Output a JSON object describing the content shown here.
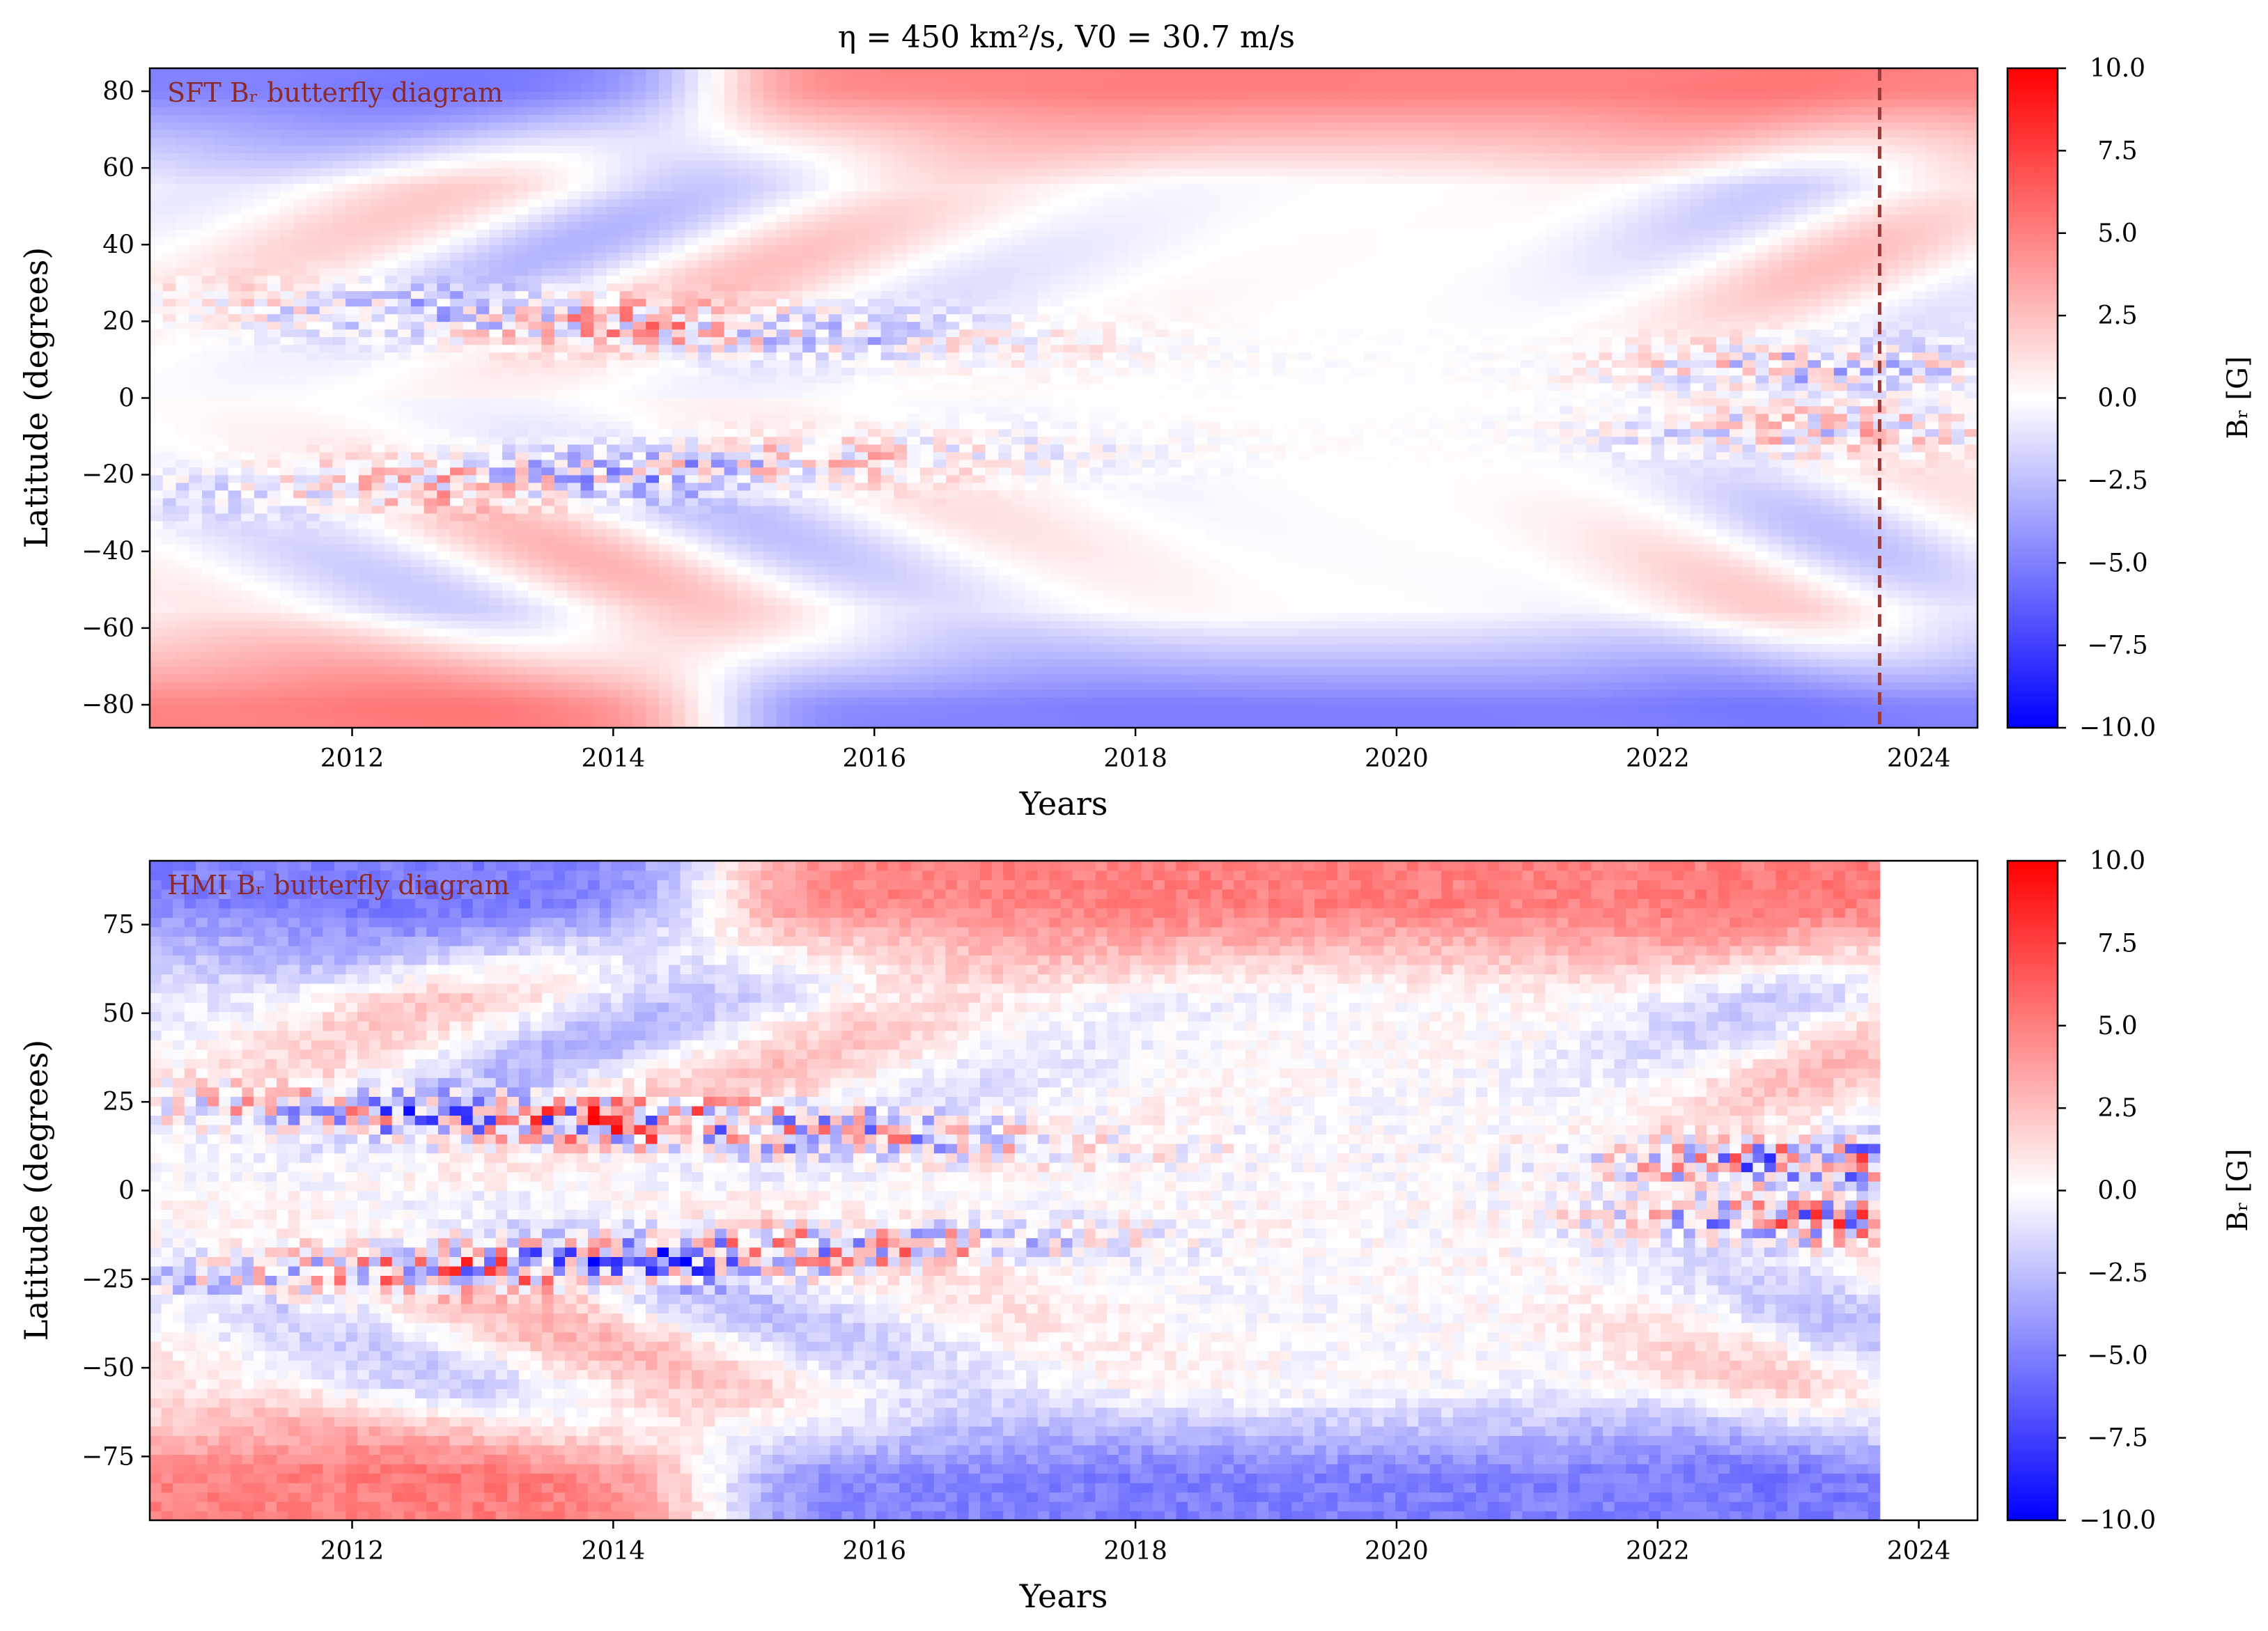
{
  "figure": {
    "title": "η = 450 km²/s, V0 = 30.7 m/s"
  },
  "colors": {
    "positive": "#ff0000",
    "negative": "#0000ff",
    "zero": "#ffffff",
    "annotation": "#8b2a2a",
    "vline": "#9b3a3a"
  },
  "chart_data": [
    {
      "type": "heatmap",
      "id": "sft",
      "annotation": "SFT Bᵣ butterfly diagram",
      "xlabel": "Years",
      "ylabel": "Latitude (degrees)",
      "xlim": [
        2010.45,
        2024.45
      ],
      "ylim": [
        -86,
        86
      ],
      "xticks": [
        2012,
        2014,
        2016,
        2018,
        2020,
        2022,
        2024
      ],
      "yticks": [
        -80,
        -60,
        -40,
        -20,
        0,
        20,
        40,
        60,
        80
      ],
      "vline_year": 2023.7,
      "data_end_year": 2024.45,
      "colorbar": {
        "label": "Bᵣ [G]",
        "range": [
          -10,
          10
        ],
        "ticks": [
          "10.0",
          "7.5",
          "5.0",
          "2.5",
          "0.0",
          "−2.5",
          "−5.0",
          "−7.5",
          "−10.0"
        ]
      }
    },
    {
      "type": "heatmap",
      "id": "hmi",
      "annotation": "HMI Bᵣ butterfly diagram",
      "xlabel": "Years",
      "ylabel": "Latitude (degrees)",
      "xlim": [
        2010.45,
        2024.45
      ],
      "ylim": [
        -93,
        93
      ],
      "xticks": [
        2012,
        2014,
        2016,
        2018,
        2020,
        2022,
        2024
      ],
      "yticks": [
        -75,
        -50,
        -25,
        0,
        25,
        50,
        75
      ],
      "data_end_year": 2023.7,
      "colorbar": {
        "label": "Bᵣ [G]",
        "range": [
          -10,
          10
        ],
        "ticks": [
          "10.0",
          "7.5",
          "5.0",
          "2.5",
          "0.0",
          "−2.5",
          "−5.0",
          "−7.5",
          "−10.0"
        ]
      }
    }
  ]
}
